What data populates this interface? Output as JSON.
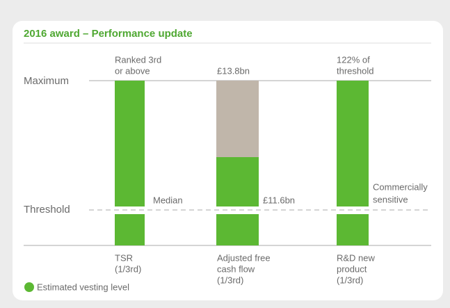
{
  "title": "2016 award – Performance update",
  "levels": {
    "maximum": "Maximum",
    "threshold": "Threshold"
  },
  "columns": [
    {
      "top_label": [
        "Ranked 3rd",
        "or above"
      ],
      "side_label": [
        "Median"
      ],
      "name": [
        "TSR",
        "(1/3rd)"
      ]
    },
    {
      "top_label": [
        "£13.8bn"
      ],
      "side_label": [
        "£11.6bn"
      ],
      "name": [
        "Adjusted free",
        "cash flow",
        "(1/3rd)"
      ]
    },
    {
      "top_label": [
        "122% of",
        "threshold"
      ],
      "side_label": [
        "Commercially",
        "sensitive"
      ],
      "name": [
        "R&D new",
        "product",
        "(1/3rd)"
      ]
    }
  ],
  "legend": "Estimated vesting level"
}
